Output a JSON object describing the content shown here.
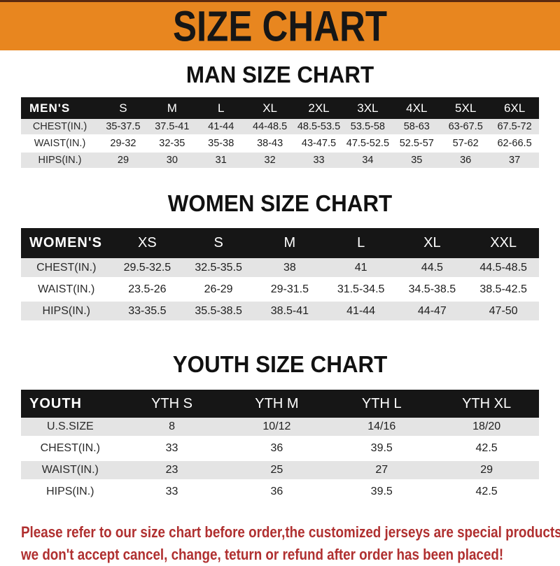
{
  "banner": {
    "title": "SIZE CHART",
    "bg_color": "#E8861F",
    "text_color": "#161616"
  },
  "sections": [
    {
      "id": "mens",
      "title": "MAN SIZE CHART",
      "table": {
        "header_label": "MEN'S",
        "columns": [
          "S",
          "M",
          "L",
          "XL",
          "2XL",
          "3XL",
          "4XL",
          "5XL",
          "6XL"
        ],
        "rows": [
          {
            "label": "CHEST(IN.)",
            "values": [
              "35-37.5",
              "37.5-41",
              "41-44",
              "44-48.5",
              "48.5-53.5",
              "53.5-58",
              "58-63",
              "63-67.5",
              "67.5-72"
            ]
          },
          {
            "label": "WAIST(IN.)",
            "values": [
              "29-32",
              "32-35",
              "35-38",
              "38-43",
              "43-47.5",
              "47.5-52.5",
              "52.5-57",
              "57-62",
              "62-66.5"
            ]
          },
          {
            "label": "HIPS(IN.)",
            "values": [
              "29",
              "30",
              "31",
              "32",
              "33",
              "34",
              "35",
              "36",
              "37"
            ]
          }
        ]
      }
    },
    {
      "id": "womens",
      "title": "WOMEN SIZE CHART",
      "table": {
        "header_label": "WOMEN'S",
        "columns": [
          "XS",
          "S",
          "M",
          "L",
          "XL",
          "XXL"
        ],
        "rows": [
          {
            "label": "CHEST(IN.)",
            "values": [
              "29.5-32.5",
              "32.5-35.5",
              "38",
              "41",
              "44.5",
              "44.5-48.5"
            ]
          },
          {
            "label": "WAIST(IN.)",
            "values": [
              "23.5-26",
              "26-29",
              "29-31.5",
              "31.5-34.5",
              "34.5-38.5",
              "38.5-42.5"
            ]
          },
          {
            "label": "HIPS(IN.)",
            "values": [
              "33-35.5",
              "35.5-38.5",
              "38.5-41",
              "41-44",
              "44-47",
              "47-50"
            ]
          }
        ]
      }
    },
    {
      "id": "youth",
      "title": "YOUTH SIZE CHART",
      "table": {
        "header_label": "YOUTH",
        "columns": [
          "YTH S",
          "YTH M",
          "YTH L",
          "YTH XL"
        ],
        "rows": [
          {
            "label": "U.S.SIZE",
            "values": [
              "8",
              "10/12",
              "14/16",
              "18/20"
            ]
          },
          {
            "label": "CHEST(IN.)",
            "values": [
              "33",
              "36",
              "39.5",
              "42.5"
            ]
          },
          {
            "label": "WAIST(IN.)",
            "values": [
              "23",
              "25",
              "27",
              "29"
            ]
          },
          {
            "label": "HIPS(IN.)",
            "values": [
              "33",
              "36",
              "39.5",
              "42.5"
            ]
          }
        ]
      }
    }
  ],
  "footer": {
    "line1": "Please refer to our size chart before order,the customized jerseys are special products,",
    "line2": "we don't accept cancel, change, teturn or refund after order has been placed!",
    "text_color": "#B03030"
  },
  "colors": {
    "banner_orange": "#E8861F",
    "banner_top_border": "#5B2A10",
    "table_header_black": "#161616",
    "row_stripe_gray": "#E4E4E4",
    "footer_red": "#B03030"
  }
}
